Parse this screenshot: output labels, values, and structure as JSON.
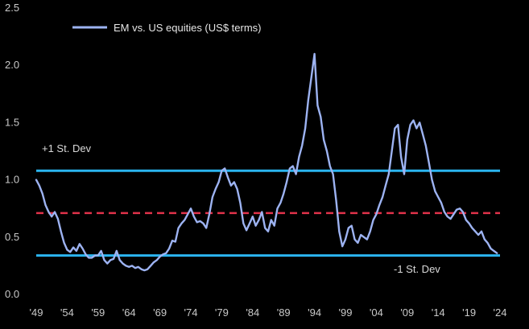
{
  "chart_data": {
    "type": "line",
    "title": "",
    "xlabel": "",
    "ylabel": "",
    "xlim": [
      1949,
      2024
    ],
    "ylim": [
      0.0,
      2.5
    ],
    "x_ticks": [
      "'49",
      "'54",
      "'59",
      "'64",
      "'69",
      "'74",
      "'79",
      "'84",
      "'89",
      "'94",
      "'99",
      "'04",
      "'09",
      "'14",
      "'19",
      "'24"
    ],
    "x_tick_values": [
      1949,
      1954,
      1959,
      1964,
      1969,
      1974,
      1979,
      1984,
      1989,
      1994,
      1999,
      2004,
      2009,
      2014,
      2019,
      2024
    ],
    "y_ticks": [
      "0.0",
      "0.5",
      "1.0",
      "1.5",
      "2.0",
      "2.5"
    ],
    "y_tick_values": [
      0.0,
      0.5,
      1.0,
      1.5,
      2.0,
      2.5
    ],
    "grid": false,
    "legend": {
      "placement": "top-left",
      "entries": [
        "EM vs. US equities (US$ terms)"
      ]
    },
    "series": [
      {
        "name": "EM vs. US equities (US$ terms)",
        "color": "#9db3f2",
        "points": [
          [
            1949.0,
            1.0
          ],
          [
            1949.5,
            0.95
          ],
          [
            1950.0,
            0.88
          ],
          [
            1950.5,
            0.78
          ],
          [
            1951.0,
            0.72
          ],
          [
            1951.5,
            0.68
          ],
          [
            1952.0,
            0.72
          ],
          [
            1952.5,
            0.66
          ],
          [
            1953.0,
            0.55
          ],
          [
            1953.5,
            0.45
          ],
          [
            1954.0,
            0.39
          ],
          [
            1954.5,
            0.37
          ],
          [
            1955.0,
            0.41
          ],
          [
            1955.5,
            0.38
          ],
          [
            1956.0,
            0.44
          ],
          [
            1956.5,
            0.4
          ],
          [
            1957.0,
            0.35
          ],
          [
            1957.5,
            0.32
          ],
          [
            1958.0,
            0.32
          ],
          [
            1958.5,
            0.34
          ],
          [
            1959.0,
            0.34
          ],
          [
            1959.5,
            0.38
          ],
          [
            1960.0,
            0.3
          ],
          [
            1960.5,
            0.27
          ],
          [
            1961.0,
            0.3
          ],
          [
            1961.5,
            0.31
          ],
          [
            1962.0,
            0.38
          ],
          [
            1962.5,
            0.3
          ],
          [
            1963.0,
            0.27
          ],
          [
            1963.5,
            0.25
          ],
          [
            1964.0,
            0.24
          ],
          [
            1964.5,
            0.25
          ],
          [
            1965.0,
            0.23
          ],
          [
            1965.5,
            0.24
          ],
          [
            1966.0,
            0.22
          ],
          [
            1966.5,
            0.21
          ],
          [
            1967.0,
            0.22
          ],
          [
            1967.5,
            0.25
          ],
          [
            1968.0,
            0.28
          ],
          [
            1968.5,
            0.3
          ],
          [
            1969.0,
            0.33
          ],
          [
            1969.5,
            0.35
          ],
          [
            1970.0,
            0.36
          ],
          [
            1970.5,
            0.4
          ],
          [
            1971.0,
            0.47
          ],
          [
            1971.5,
            0.46
          ],
          [
            1972.0,
            0.58
          ],
          [
            1972.5,
            0.62
          ],
          [
            1973.0,
            0.65
          ],
          [
            1973.5,
            0.7
          ],
          [
            1974.0,
            0.75
          ],
          [
            1974.5,
            0.68
          ],
          [
            1975.0,
            0.63
          ],
          [
            1975.5,
            0.64
          ],
          [
            1976.0,
            0.62
          ],
          [
            1976.5,
            0.58
          ],
          [
            1977.0,
            0.7
          ],
          [
            1977.5,
            0.85
          ],
          [
            1978.0,
            0.92
          ],
          [
            1978.5,
            0.98
          ],
          [
            1979.0,
            1.08
          ],
          [
            1979.5,
            1.1
          ],
          [
            1980.0,
            1.02
          ],
          [
            1980.5,
            0.95
          ],
          [
            1981.0,
            0.98
          ],
          [
            1981.5,
            0.92
          ],
          [
            1982.0,
            0.8
          ],
          [
            1982.5,
            0.62
          ],
          [
            1983.0,
            0.56
          ],
          [
            1983.5,
            0.62
          ],
          [
            1984.0,
            0.68
          ],
          [
            1984.5,
            0.6
          ],
          [
            1985.0,
            0.65
          ],
          [
            1985.5,
            0.72
          ],
          [
            1986.0,
            0.58
          ],
          [
            1986.5,
            0.55
          ],
          [
            1987.0,
            0.65
          ],
          [
            1987.5,
            0.6
          ],
          [
            1988.0,
            0.75
          ],
          [
            1988.5,
            0.8
          ],
          [
            1989.0,
            0.88
          ],
          [
            1989.5,
            0.98
          ],
          [
            1990.0,
            1.1
          ],
          [
            1990.5,
            1.12
          ],
          [
            1991.0,
            1.05
          ],
          [
            1991.5,
            1.2
          ],
          [
            1992.0,
            1.3
          ],
          [
            1992.5,
            1.45
          ],
          [
            1993.0,
            1.7
          ],
          [
            1993.5,
            1.9
          ],
          [
            1994.0,
            2.1
          ],
          [
            1994.5,
            1.65
          ],
          [
            1995.0,
            1.55
          ],
          [
            1995.5,
            1.35
          ],
          [
            1996.0,
            1.25
          ],
          [
            1996.5,
            1.12
          ],
          [
            1997.0,
            1.05
          ],
          [
            1997.5,
            0.82
          ],
          [
            1998.0,
            0.55
          ],
          [
            1998.5,
            0.42
          ],
          [
            1999.0,
            0.48
          ],
          [
            1999.5,
            0.58
          ],
          [
            2000.0,
            0.6
          ],
          [
            2000.5,
            0.48
          ],
          [
            2001.0,
            0.45
          ],
          [
            2001.5,
            0.52
          ],
          [
            2002.0,
            0.5
          ],
          [
            2002.5,
            0.48
          ],
          [
            2003.0,
            0.55
          ],
          [
            2003.5,
            0.65
          ],
          [
            2004.0,
            0.7
          ],
          [
            2004.5,
            0.78
          ],
          [
            2005.0,
            0.85
          ],
          [
            2005.5,
            0.95
          ],
          [
            2006.0,
            1.05
          ],
          [
            2006.5,
            1.25
          ],
          [
            2007.0,
            1.45
          ],
          [
            2007.5,
            1.48
          ],
          [
            2008.0,
            1.2
          ],
          [
            2008.5,
            1.05
          ],
          [
            2009.0,
            1.35
          ],
          [
            2009.5,
            1.48
          ],
          [
            2010.0,
            1.52
          ],
          [
            2010.5,
            1.45
          ],
          [
            2011.0,
            1.5
          ],
          [
            2011.5,
            1.4
          ],
          [
            2012.0,
            1.3
          ],
          [
            2012.5,
            1.15
          ],
          [
            2013.0,
            1.0
          ],
          [
            2013.5,
            0.9
          ],
          [
            2014.0,
            0.85
          ],
          [
            2014.5,
            0.8
          ],
          [
            2015.0,
            0.72
          ],
          [
            2015.5,
            0.68
          ],
          [
            2016.0,
            0.66
          ],
          [
            2016.5,
            0.7
          ],
          [
            2017.0,
            0.74
          ],
          [
            2017.5,
            0.75
          ],
          [
            2018.0,
            0.72
          ],
          [
            2018.5,
            0.65
          ],
          [
            2019.0,
            0.62
          ],
          [
            2019.5,
            0.58
          ],
          [
            2020.0,
            0.55
          ],
          [
            2020.5,
            0.52
          ],
          [
            2021.0,
            0.55
          ],
          [
            2021.5,
            0.48
          ],
          [
            2022.0,
            0.45
          ],
          [
            2022.5,
            0.4
          ],
          [
            2023.0,
            0.38
          ],
          [
            2023.5,
            0.36
          ]
        ]
      }
    ],
    "reference_lines": [
      {
        "name": "+1 St. Dev",
        "value": 1.08,
        "color": "#2bb5f0",
        "style": "solid"
      },
      {
        "name": "mean",
        "value": 0.71,
        "color": "#e0324a",
        "style": "dashed"
      },
      {
        "name": "-1 St. Dev",
        "value": 0.34,
        "color": "#2bb5f0",
        "style": "solid"
      }
    ],
    "annotations": [
      {
        "text": "+1 St. Dev",
        "near": "upper-reference-line",
        "side": "above-left"
      },
      {
        "text": "-1 St. Dev",
        "near": "lower-reference-line",
        "side": "below-right"
      }
    ]
  }
}
